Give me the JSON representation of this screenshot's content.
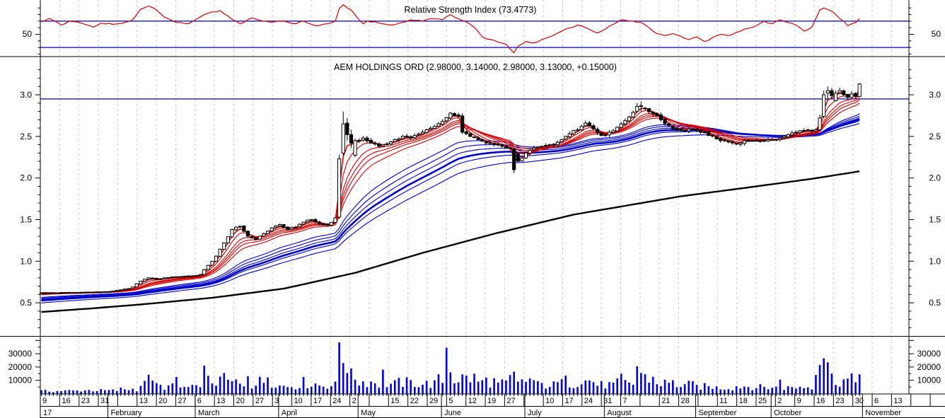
{
  "colors": {
    "background": "#ffffff",
    "rsi_line": "#d40000",
    "level_line": "#0000bb",
    "grid": "#c8c8c8",
    "axis": "#000000",
    "volume_bar": "#0000dd",
    "ema_short": "#d40000",
    "ema_long": "#0000cc",
    "slow_ma": "#000000",
    "candle_up_fill": "#ffffff",
    "candle_down_fill": "#000000",
    "candle_border": "#000000"
  },
  "chart_data": [
    {
      "type": "line",
      "title": "Relative Strength Index (73.4773)",
      "series_name": "RSI",
      "current_value": 73.4773,
      "color": "#d40000",
      "level_lines": [
        70,
        30
      ],
      "y_axis_label": "50",
      "y_axis_label_value": 50,
      "legend_position": "top-center",
      "grid": "weekly-vertical-dashed",
      "points": [
        [
          0,
          69
        ],
        [
          2,
          74
        ],
        [
          5,
          64
        ],
        [
          7,
          70
        ],
        [
          10,
          67
        ],
        [
          13,
          61
        ],
        [
          15,
          67
        ],
        [
          18,
          65
        ],
        [
          21,
          68
        ],
        [
          23,
          72
        ],
        [
          25,
          88
        ],
        [
          27,
          93
        ],
        [
          29,
          87
        ],
        [
          31,
          76
        ],
        [
          34,
          68
        ],
        [
          37,
          66
        ],
        [
          39,
          73
        ],
        [
          42,
          82
        ],
        [
          45,
          86
        ],
        [
          48,
          73
        ],
        [
          50,
          66
        ],
        [
          53,
          75
        ],
        [
          56,
          70
        ],
        [
          58,
          68
        ],
        [
          61,
          70
        ],
        [
          64,
          66
        ],
        [
          66,
          70
        ],
        [
          69,
          63
        ],
        [
          72,
          66
        ],
        [
          74,
          70
        ],
        [
          75,
          89
        ],
        [
          76,
          95
        ],
        [
          78,
          87
        ],
        [
          80,
          72
        ],
        [
          81,
          66
        ],
        [
          82,
          70
        ],
        [
          85,
          67
        ],
        [
          88,
          64
        ],
        [
          91,
          68
        ],
        [
          93,
          72
        ],
        [
          96,
          70
        ],
        [
          98,
          74
        ],
        [
          101,
          72
        ],
        [
          103,
          80
        ],
        [
          106,
          71
        ],
        [
          108,
          65
        ],
        [
          110,
          54
        ],
        [
          111,
          46
        ],
        [
          113,
          42
        ],
        [
          115,
          38
        ],
        [
          117,
          35
        ],
        [
          119,
          22
        ],
        [
          120,
          32
        ],
        [
          122,
          39
        ],
        [
          124,
          37
        ],
        [
          127,
          44
        ],
        [
          130,
          52
        ],
        [
          132,
          58
        ],
        [
          135,
          64
        ],
        [
          137,
          60
        ],
        [
          140,
          52
        ],
        [
          142,
          58
        ],
        [
          144,
          65
        ],
        [
          146,
          72
        ],
        [
          149,
          70
        ],
        [
          151,
          68
        ],
        [
          153,
          60
        ],
        [
          155,
          51
        ],
        [
          157,
          48
        ],
        [
          159,
          51
        ],
        [
          161,
          47
        ],
        [
          163,
          42
        ],
        [
          165,
          46
        ],
        [
          167,
          39
        ],
        [
          169,
          45
        ],
        [
          171,
          50
        ],
        [
          173,
          48
        ],
        [
          175,
          53
        ],
        [
          177,
          58
        ],
        [
          180,
          63
        ],
        [
          182,
          70
        ],
        [
          184,
          66
        ],
        [
          186,
          72
        ],
        [
          188,
          68
        ],
        [
          190,
          64
        ],
        [
          192,
          55
        ],
        [
          194,
          61
        ],
        [
          196,
          87
        ],
        [
          197,
          90
        ],
        [
          199,
          85
        ],
        [
          200,
          80
        ],
        [
          202,
          70
        ],
        [
          203,
          63
        ],
        [
          204,
          66
        ],
        [
          205,
          68
        ],
        [
          206,
          73.5
        ]
      ]
    },
    {
      "type": "candlestick",
      "title": "AEM HOLDINGS ORD (2.98000, 3.14000, 2.98000, 3.13000, +0.15000)",
      "symbol": "AEM HOLDINGS ORD",
      "last_ohlc": {
        "open": "2.98000",
        "high": "3.14000",
        "low": "2.98000",
        "close": "3.13000",
        "change": "+0.15000"
      },
      "y_ticks": [
        {
          "label": "3.0",
          "value": 3.0
        },
        {
          "label": "2.5",
          "value": 2.5
        },
        {
          "label": "2.0",
          "value": 2.0
        },
        {
          "label": "1.5",
          "value": 1.5
        },
        {
          "label": "1.0",
          "value": 1.0
        },
        {
          "label": "0.5",
          "value": 0.5
        }
      ],
      "ylim": [
        0.1,
        3.45
      ],
      "hline": 2.95,
      "days_total": 207,
      "close_anchors": [
        [
          0,
          0.62
        ],
        [
          3,
          0.618
        ],
        [
          5,
          0.622
        ],
        [
          8,
          0.62
        ],
        [
          10,
          0.625
        ],
        [
          13,
          0.628
        ],
        [
          15,
          0.63
        ],
        [
          18,
          0.64
        ],
        [
          20,
          0.655
        ],
        [
          22,
          0.67
        ],
        [
          23,
          0.69
        ],
        [
          25,
          0.76
        ],
        [
          27,
          0.8
        ],
        [
          29,
          0.78
        ],
        [
          31,
          0.8
        ],
        [
          33,
          0.81
        ],
        [
          35,
          0.815
        ],
        [
          38,
          0.82
        ],
        [
          40,
          0.84
        ],
        [
          42,
          0.95
        ],
        [
          44,
          1.06
        ],
        [
          46,
          1.22
        ],
        [
          48,
          1.38
        ],
        [
          50,
          1.42
        ],
        [
          52,
          1.3
        ],
        [
          54,
          1.26
        ],
        [
          56,
          1.33
        ],
        [
          58,
          1.4
        ],
        [
          60,
          1.44
        ],
        [
          62,
          1.38
        ],
        [
          64,
          1.41
        ],
        [
          66,
          1.47
        ],
        [
          68,
          1.5
        ],
        [
          70,
          1.45
        ],
        [
          72,
          1.43
        ],
        [
          74,
          1.52
        ],
        [
          79,
          2.45
        ],
        [
          81,
          2.48
        ],
        [
          83,
          2.42
        ],
        [
          85,
          2.38
        ],
        [
          87,
          2.41
        ],
        [
          89,
          2.46
        ],
        [
          91,
          2.5
        ],
        [
          93,
          2.48
        ],
        [
          95,
          2.53
        ],
        [
          97,
          2.58
        ],
        [
          99,
          2.62
        ],
        [
          101,
          2.68
        ],
        [
          103,
          2.78
        ],
        [
          105,
          2.74
        ],
        [
          106,
          2.55
        ],
        [
          108,
          2.5
        ],
        [
          110,
          2.46
        ],
        [
          112,
          2.42
        ],
        [
          114,
          2.4
        ],
        [
          116,
          2.38
        ],
        [
          118,
          2.36
        ],
        [
          120,
          2.2
        ],
        [
          122,
          2.3
        ],
        [
          124,
          2.36
        ],
        [
          126,
          2.38
        ],
        [
          128,
          2.4
        ],
        [
          130,
          2.43
        ],
        [
          132,
          2.5
        ],
        [
          134,
          2.57
        ],
        [
          136,
          2.62
        ],
        [
          137,
          2.66
        ],
        [
          139,
          2.59
        ],
        [
          141,
          2.51
        ],
        [
          143,
          2.55
        ],
        [
          145,
          2.61
        ],
        [
          147,
          2.69
        ],
        [
          149,
          2.79
        ],
        [
          152,
          2.84
        ],
        [
          154,
          2.77
        ],
        [
          156,
          2.7
        ],
        [
          158,
          2.63
        ],
        [
          160,
          2.58
        ],
        [
          162,
          2.57
        ],
        [
          164,
          2.59
        ],
        [
          166,
          2.55
        ],
        [
          168,
          2.51
        ],
        [
          170,
          2.47
        ],
        [
          172,
          2.45
        ],
        [
          174,
          2.42
        ],
        [
          176,
          2.42
        ],
        [
          178,
          2.45
        ],
        [
          180,
          2.45
        ],
        [
          182,
          2.45
        ],
        [
          184,
          2.46
        ],
        [
          186,
          2.48
        ],
        [
          188,
          2.52
        ],
        [
          190,
          2.55
        ],
        [
          192,
          2.57
        ],
        [
          194,
          2.56
        ],
        [
          195,
          2.58
        ],
        [
          200,
          3.02
        ],
        [
          201,
          3.05
        ],
        [
          202,
          3.0
        ],
        [
          203,
          2.97
        ],
        [
          204,
          3.01
        ],
        [
          205,
          2.98
        ],
        [
          206,
          3.13
        ]
      ],
      "ohlc_overrides": {
        "75": [
          1.53,
          2.28,
          1.51,
          2.23
        ],
        "76": [
          2.3,
          2.8,
          2.26,
          2.65
        ],
        "77": [
          2.66,
          2.72,
          2.45,
          2.52
        ],
        "78": [
          2.52,
          2.58,
          2.36,
          2.42
        ],
        "119": [
          2.35,
          2.36,
          2.06,
          2.1
        ],
        "150": [
          2.8,
          2.9,
          2.78,
          2.86
        ],
        "151": [
          2.86,
          2.92,
          2.8,
          2.87
        ],
        "196": [
          2.58,
          2.76,
          2.56,
          2.72
        ],
        "197": [
          2.74,
          3.05,
          2.72,
          3.0
        ],
        "198": [
          3.02,
          3.1,
          2.94,
          3.05
        ],
        "199": [
          3.05,
          3.08,
          2.95,
          2.99
        ],
        "206": [
          2.98,
          3.14,
          2.98,
          3.13
        ]
      },
      "ema_short": {
        "color": "#d40000",
        "periods": [
          3,
          5,
          8,
          10,
          12,
          15
        ]
      },
      "ema_long": {
        "color": "#0000cc",
        "periods": [
          30,
          35,
          40,
          45,
          50,
          60
        ],
        "bold_period": 45
      },
      "slow_ma": {
        "color": "#000000",
        "anchors": [
          [
            0,
            0.39
          ],
          [
            12,
            0.43
          ],
          [
            25,
            0.48
          ],
          [
            43,
            0.56
          ],
          [
            61,
            0.67
          ],
          [
            79,
            0.86
          ],
          [
            96,
            1.1
          ],
          [
            114,
            1.33
          ],
          [
            134,
            1.56
          ],
          [
            150,
            1.69
          ],
          [
            161,
            1.78
          ],
          [
            177,
            1.88
          ],
          [
            194,
            1.99
          ],
          [
            206,
            2.08
          ]
        ]
      }
    },
    {
      "type": "bar",
      "series_name": "Volume",
      "color": "#0000dd",
      "y_ticks": [
        {
          "label": "30000",
          "value": 30000
        },
        {
          "label": "20000",
          "value": 20000
        },
        {
          "label": "10000",
          "value": 10000
        }
      ],
      "weekly_base": [
        1800,
        2000,
        2400,
        2200,
        3200,
        6500,
        5000,
        4200,
        9000,
        8000,
        6500,
        8500,
        5500,
        7000,
        6000,
        12000,
        8500,
        6800,
        7800,
        7000,
        9500,
        11000,
        8500,
        7000,
        9500,
        6200,
        7200,
        9000,
        6200,
        7200,
        11000,
        7500,
        6200,
        5000,
        4200,
        5200,
        4500,
        4200,
        4800,
        6500,
        9500,
        8500
      ],
      "spikes": {
        "27": 14200,
        "34": 12500,
        "41": 21000,
        "46": 15500,
        "52": 13000,
        "57": 12200,
        "66": 12500,
        "75": 38500,
        "76": 23000,
        "77": 15500,
        "86": 18000,
        "102": 34500,
        "103": 16000,
        "112": 12000,
        "118": 14000,
        "119": 16500,
        "120": 9000,
        "132": 13500,
        "146": 15000,
        "150": 20500,
        "151": 15500,
        "186": 10500,
        "195": 14000,
        "196": 21500,
        "197": 26500,
        "198": 23500,
        "199": 15000,
        "206": 14500
      }
    }
  ],
  "x_axis": {
    "week_labels": [
      "9",
      "16",
      "23",
      "31",
      "",
      "13",
      "20",
      "27",
      "6",
      "13",
      "20",
      "27",
      "3",
      "10",
      "17",
      "24",
      "2",
      "",
      "15",
      "22",
      "29",
      "5",
      "12",
      "19",
      "27",
      "",
      "10",
      "17",
      "24",
      "31",
      "7",
      "",
      "21",
      "28",
      "",
      "11",
      "18",
      "25",
      "2",
      "9",
      "16",
      "23",
      "30",
      "6",
      "13"
    ],
    "months": [
      [
        "17",
        0
      ],
      [
        "February",
        17
      ],
      [
        "March",
        39
      ],
      [
        "April",
        60
      ],
      [
        "May",
        80
      ],
      [
        "June",
        101
      ],
      [
        "July",
        122
      ],
      [
        "August",
        142
      ],
      [
        "September",
        165
      ],
      [
        "October",
        184
      ],
      [
        "November",
        207
      ]
    ]
  }
}
